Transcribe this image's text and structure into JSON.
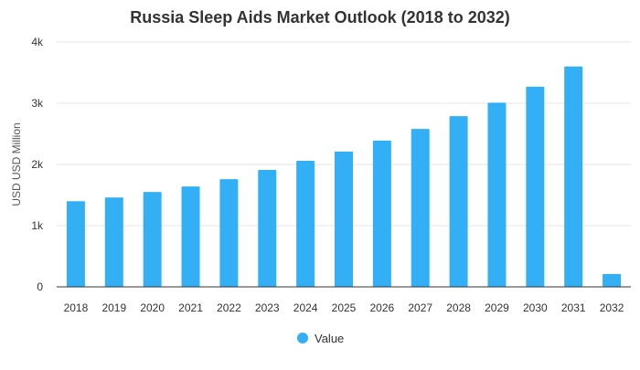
{
  "chart_data": {
    "type": "bar",
    "title": "Russia Sleep Aids Market Outlook (2018 to 2032)",
    "xlabel": "",
    "ylabel": "USD USD Million",
    "categories": [
      "2018",
      "2019",
      "2020",
      "2021",
      "2022",
      "2023",
      "2024",
      "2025",
      "2026",
      "2027",
      "2028",
      "2029",
      "2030",
      "2031",
      "2032"
    ],
    "series": [
      {
        "name": "Value",
        "values": [
          1400,
          1460,
          1550,
          1640,
          1760,
          1910,
          2060,
          2210,
          2390,
          2580,
          2790,
          3010,
          3270,
          3600,
          210
        ]
      }
    ],
    "ylim": [
      0,
      4000
    ],
    "yticks": [
      0,
      1000,
      2000,
      3000,
      4000
    ],
    "ytick_labels": [
      "0",
      "1k",
      "2k",
      "3k",
      "4k"
    ],
    "grid": true,
    "legend": "bottom-center",
    "colors": {
      "bar": "#33b0f5",
      "grid": "#e6e6e6",
      "axis": "#333333",
      "text": "#333333",
      "title": "#333333"
    }
  }
}
